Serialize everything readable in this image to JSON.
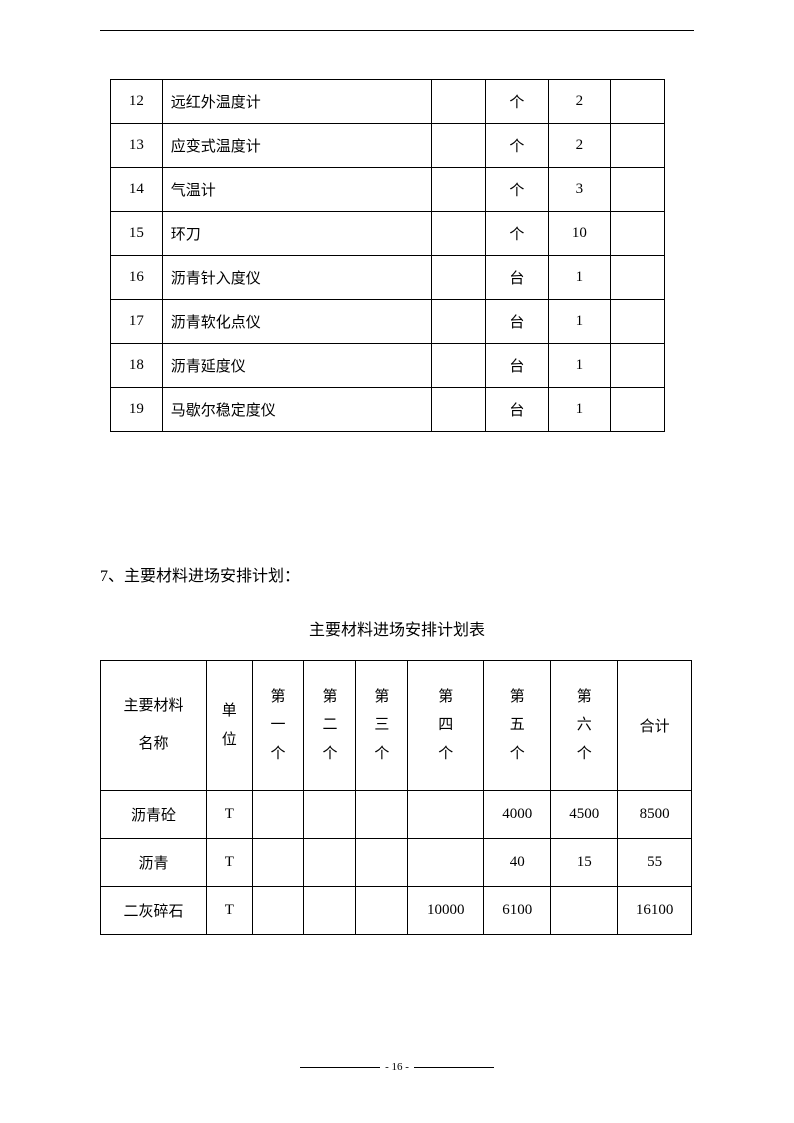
{
  "table1": {
    "rows": [
      {
        "num": "12",
        "name": "远红外温度计",
        "unit": "个",
        "qty": "2"
      },
      {
        "num": "13",
        "name": "应变式温度计",
        "unit": "个",
        "qty": "2"
      },
      {
        "num": "14",
        "name": "气温计",
        "unit": "个",
        "qty": "3"
      },
      {
        "num": "15",
        "name": "环刀",
        "unit": "个",
        "qty": "10"
      },
      {
        "num": "16",
        "name": "沥青针入度仪",
        "unit": "台",
        "qty": "1"
      },
      {
        "num": "17",
        "name": "沥青软化点仪",
        "unit": "台",
        "qty": "1"
      },
      {
        "num": "18",
        "name": "沥青延度仪",
        "unit": "台",
        "qty": "1"
      },
      {
        "num": "19",
        "name": "马歇尔稳定度仪",
        "unit": "台",
        "qty": "1"
      }
    ]
  },
  "section": {
    "text": "7、主要材料进场安排计划：",
    "table_title": "主要材料进场安排计划表"
  },
  "table2": {
    "headers": {
      "name": "主要材料\n名称",
      "unit": "单\n位",
      "m1": "第\n一\n个",
      "m2": "第\n二\n个",
      "m3": "第\n三\n个",
      "m4": "第\n四\n个",
      "m5": "第\n五\n个",
      "m6": "第\n六\n个",
      "total": "合计"
    },
    "rows": [
      {
        "name": "沥青砼",
        "unit": "T",
        "m1": "",
        "m2": "",
        "m3": "",
        "m4": "",
        "m5": "4000",
        "m6": "4500",
        "total": "8500"
      },
      {
        "name": "沥青",
        "unit": "T",
        "m1": "",
        "m2": "",
        "m3": "",
        "m4": "",
        "m5": "40",
        "m6": "15",
        "total": "55"
      },
      {
        "name": "二灰碎石",
        "unit": "T",
        "m1": "",
        "m2": "",
        "m3": "",
        "m4": "10000",
        "m5": "6100",
        "m6": "",
        "total": "16100"
      }
    ]
  },
  "footer": {
    "page": "- 16 -"
  },
  "style": {
    "font_family": "SimSun",
    "body_fontsize": 15,
    "border_color": "#000000",
    "background_color": "#ffffff"
  }
}
